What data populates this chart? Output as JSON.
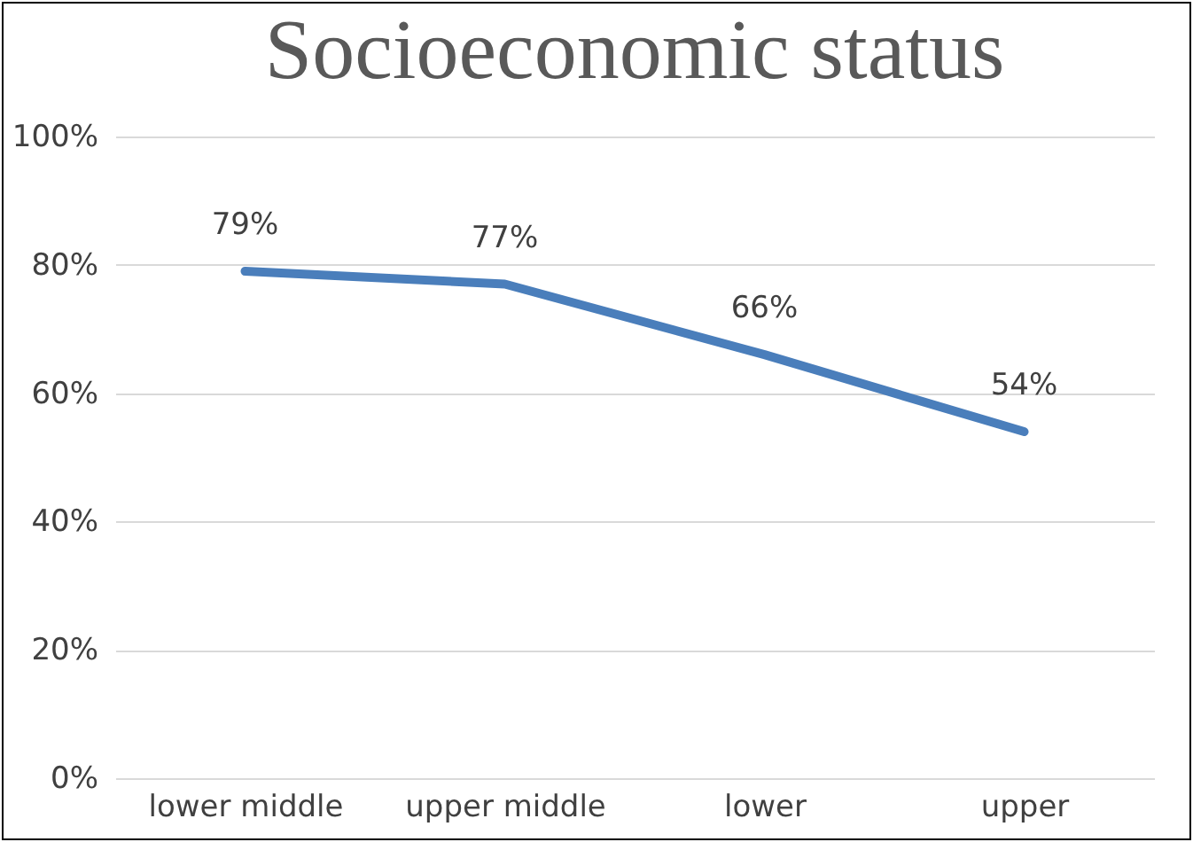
{
  "chart_data": {
    "type": "line",
    "title": "Socioeconomic status",
    "categories": [
      "lower middle",
      "upper middle",
      "lower",
      "upper"
    ],
    "values": [
      79,
      77,
      66,
      54
    ],
    "color": "#4a7ebb",
    "value_labels": [
      "79%",
      "77%",
      "66%",
      "54%"
    ],
    "ylim": [
      0,
      100
    ],
    "yticks": [
      {
        "value": 0,
        "label": "0%"
      },
      {
        "value": 20,
        "label": "20%"
      },
      {
        "value": 40,
        "label": "40%"
      },
      {
        "value": 60,
        "label": "60%"
      },
      {
        "value": 80,
        "label": "80%"
      },
      {
        "value": 100,
        "label": "100%"
      }
    ],
    "grid": "y",
    "line_style": "solid"
  }
}
